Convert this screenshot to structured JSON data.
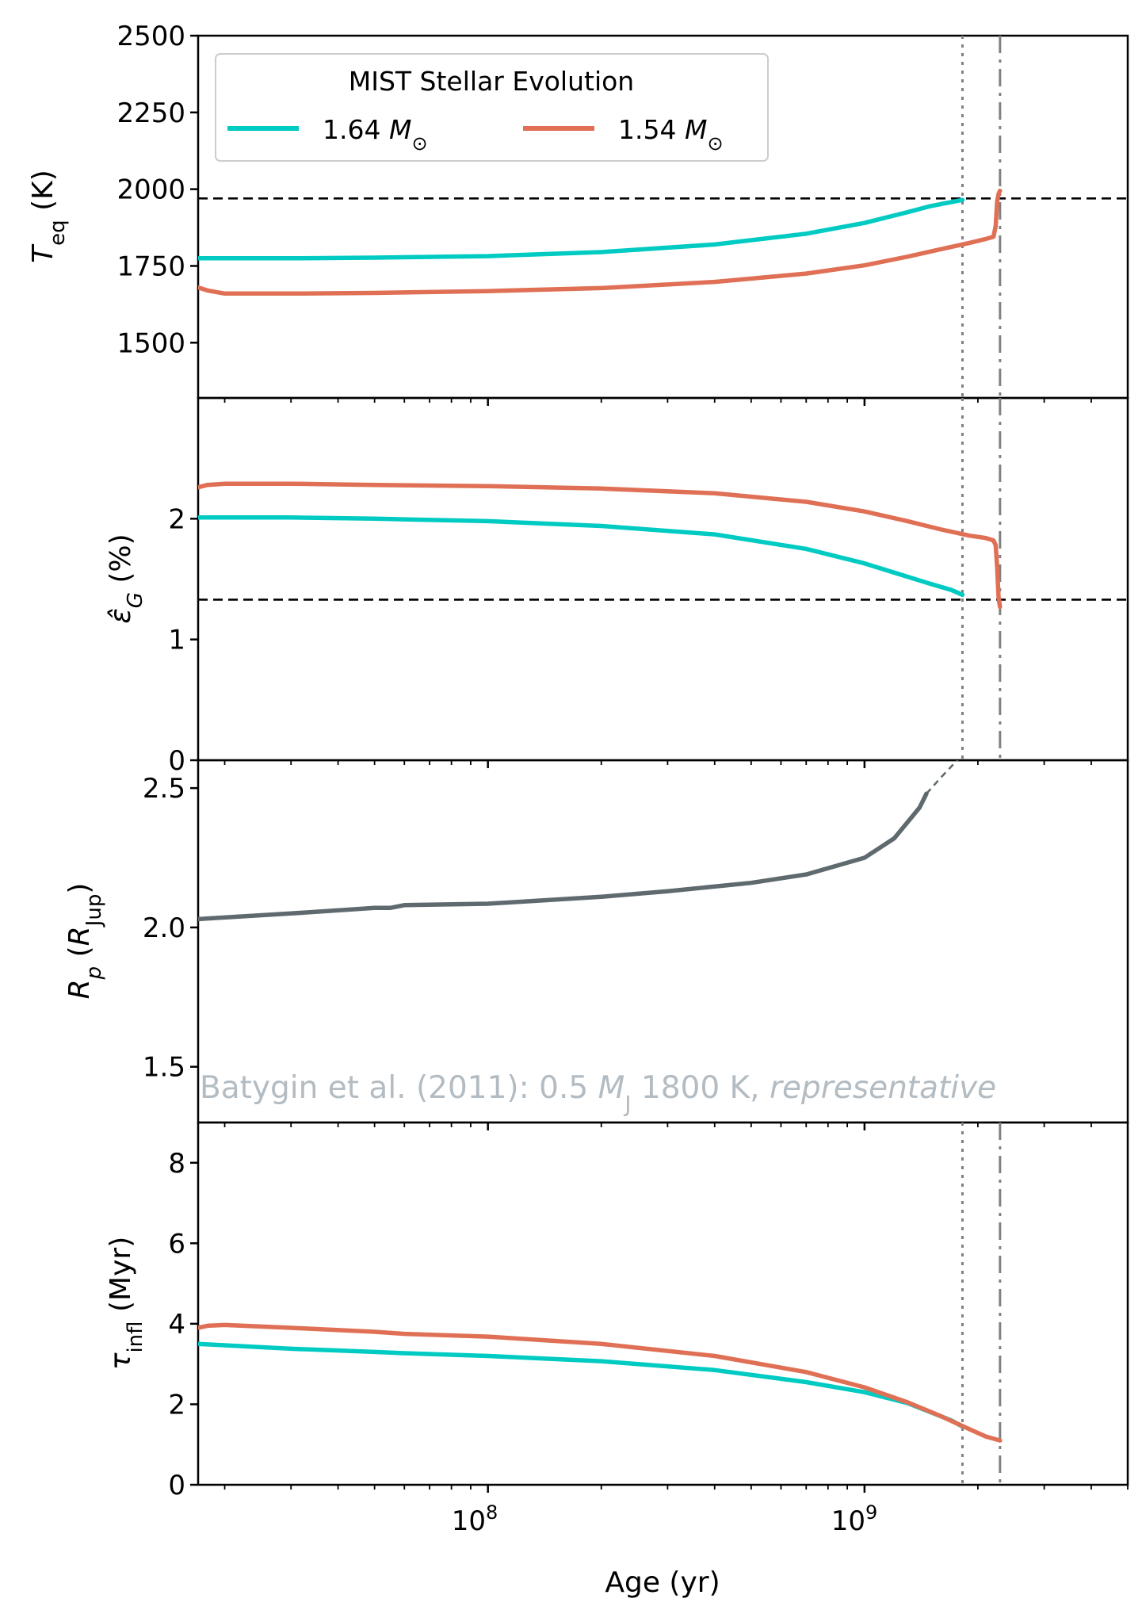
{
  "chart_data": {
    "type": "line",
    "shared_x": {
      "label": "Age (yr)",
      "scale": "log",
      "xlim": [
        17000000,
        5000000000
      ],
      "major_tick_labels": [
        {
          "value": 100000000,
          "base": "10",
          "exp": "8"
        },
        {
          "value": 1000000000,
          "base": "10",
          "exp": "9"
        }
      ]
    },
    "vertical_lines": [
      {
        "x": 1820000000,
        "style": "dotted",
        "color": "#808080"
      },
      {
        "x": 2290000000,
        "style": "dashdot",
        "color": "#808080"
      }
    ],
    "legend": {
      "title": "MIST Stellar Evolution",
      "placement": "upper-left",
      "entries": [
        {
          "label": "1.64",
          "unit": "M",
          "sub": "⊙",
          "color": "#00cbc3"
        },
        {
          "label": "1.54",
          "unit": "M",
          "sub": "⊙",
          "color": "#e07055"
        }
      ]
    },
    "panels": [
      {
        "id": "teq",
        "ylabel": {
          "main": "T",
          "sub": "eq",
          "rest": " (K)"
        },
        "ylim": [
          1320,
          2500
        ],
        "yticks": [
          "1500",
          "1750",
          "2000",
          "2250",
          "2500"
        ],
        "hline": {
          "y": 1970,
          "style": "dashed",
          "color": "#000000"
        },
        "series": [
          {
            "name": "1.64",
            "color": "#00cbc3",
            "x": [
              17000000,
              30000000,
              50000000,
              100000000,
              200000000,
              400000000,
              700000000,
              1000000000,
              1300000000,
              1500000000,
              1700000000,
              1820000000
            ],
            "y": [
              1775,
              1775,
              1777,
              1782,
              1795,
              1820,
              1855,
              1890,
              1925,
              1945,
              1958,
              1965
            ]
          },
          {
            "name": "1.54",
            "color": "#e07055",
            "x": [
              17000000,
              18000000,
              20000000,
              30000000,
              50000000,
              100000000,
              200000000,
              400000000,
              700000000,
              1000000000,
              1300000000,
              1600000000,
              1900000000,
              2100000000,
              2200000000,
              2230000000,
              2250000000,
              2270000000,
              2290000000
            ],
            "y": [
              1680,
              1670,
              1660,
              1660,
              1662,
              1668,
              1678,
              1698,
              1725,
              1752,
              1780,
              1805,
              1825,
              1838,
              1845,
              1880,
              1960,
              1985,
              1995
            ]
          }
        ]
      },
      {
        "id": "eps",
        "ylabel": {
          "main": "ε̂",
          "sub": "G",
          "rest": " (%)"
        },
        "ylim": [
          0,
          3.0
        ],
        "yticks": [
          "0",
          "1",
          "2"
        ],
        "hline": {
          "y": 1.33,
          "style": "dashed",
          "color": "#000000"
        },
        "series": [
          {
            "name": "1.64",
            "color": "#00cbc3",
            "x": [
              17000000,
              30000000,
              50000000,
              100000000,
              200000000,
              400000000,
              700000000,
              1000000000,
              1300000000,
              1500000000,
              1700000000,
              1820000000
            ],
            "y": [
              2.01,
              2.01,
              2.0,
              1.98,
              1.94,
              1.87,
              1.75,
              1.63,
              1.52,
              1.46,
              1.41,
              1.37
            ]
          },
          {
            "name": "1.54",
            "color": "#e07055",
            "x": [
              17000000,
              18000000,
              20000000,
              30000000,
              50000000,
              100000000,
              200000000,
              400000000,
              700000000,
              1000000000,
              1300000000,
              1600000000,
              1900000000,
              2100000000,
              2200000000,
              2230000000,
              2250000000,
              2270000000,
              2290000000
            ],
            "y": [
              2.26,
              2.28,
              2.29,
              2.29,
              2.28,
              2.27,
              2.25,
              2.21,
              2.14,
              2.06,
              1.98,
              1.91,
              1.86,
              1.84,
              1.82,
              1.78,
              1.6,
              1.35,
              1.27
            ]
          }
        ]
      },
      {
        "id": "rp",
        "ylabel": {
          "main": "R",
          "sub": "p",
          "rest": " (",
          "main2": "R",
          "sub2": "Jup",
          "rest2": ")"
        },
        "ylim": [
          1.3,
          2.6
        ],
        "yticks": [
          "1.5",
          "2.0",
          "2.5"
        ],
        "annotation": {
          "text": "Batygin et al. (2011): 0.5 ",
          "unit": "M",
          "sub": "J",
          "rest": " 1800 K, ",
          "italic": "representative"
        },
        "series": [
          {
            "name": "model",
            "color": "#5f6a6f",
            "style": "solid",
            "x": [
              17000000,
              30000000,
              50000000,
              55000000,
              60000000,
              100000000,
              200000000,
              300000000,
              500000000,
              700000000,
              1000000000,
              1200000000,
              1400000000,
              1460000000
            ],
            "y": [
              2.03,
              2.05,
              2.07,
              2.07,
              2.08,
              2.085,
              2.11,
              2.13,
              2.16,
              2.19,
              2.25,
              2.32,
              2.43,
              2.48
            ]
          },
          {
            "name": "extrapolated",
            "color": "#5f6a6f",
            "style": "dashed",
            "x": [
              1460000000,
              1600000000,
              1820000000
            ],
            "y": [
              2.48,
              2.54,
              2.62
            ]
          }
        ]
      },
      {
        "id": "tau",
        "ylabel": {
          "main": "τ",
          "sub": "infl",
          "rest": " (Myr)"
        },
        "ylim": [
          0,
          9.0
        ],
        "yticks": [
          "0",
          "2",
          "4",
          "6",
          "8"
        ],
        "series": [
          {
            "name": "1.64",
            "color": "#00cbc3",
            "x": [
              17000000,
              30000000,
              50000000,
              60000000,
              100000000,
              200000000,
              400000000,
              700000000,
              1000000000,
              1300000000,
              1500000000,
              1700000000,
              1820000000
            ],
            "y": [
              3.5,
              3.38,
              3.3,
              3.27,
              3.2,
              3.07,
              2.85,
              2.55,
              2.3,
              2.03,
              1.8,
              1.6,
              1.45
            ]
          },
          {
            "name": "1.54",
            "color": "#e07055",
            "x": [
              17000000,
              18000000,
              20000000,
              30000000,
              50000000,
              60000000,
              100000000,
              200000000,
              400000000,
              700000000,
              1000000000,
              1300000000,
              1600000000,
              1900000000,
              2100000000,
              2290000000
            ],
            "y": [
              3.9,
              3.95,
              3.97,
              3.9,
              3.8,
              3.75,
              3.68,
              3.5,
              3.2,
              2.8,
              2.42,
              2.05,
              1.7,
              1.38,
              1.2,
              1.1
            ]
          }
        ]
      }
    ]
  }
}
